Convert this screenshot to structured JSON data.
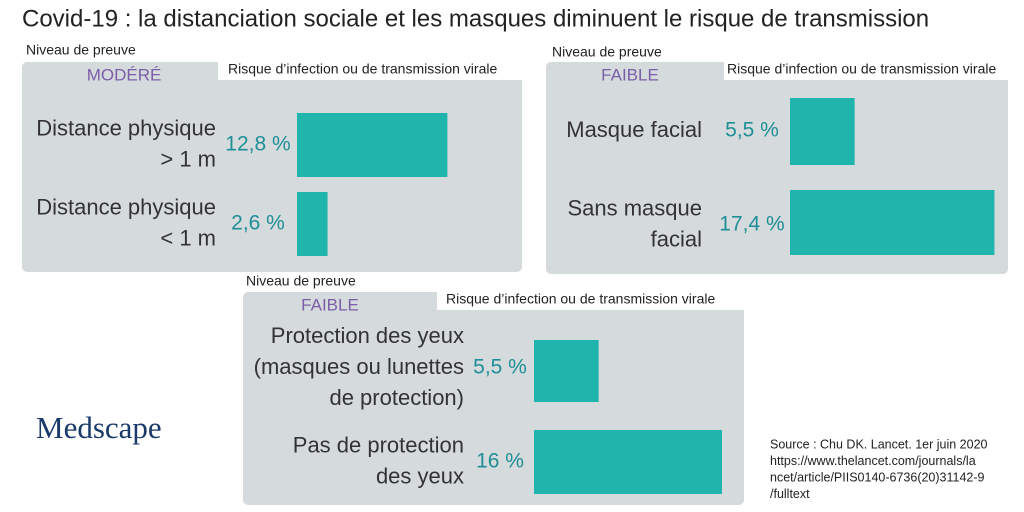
{
  "title": "Covid-19 : la distanciation sociale et les masques diminuent le risque de transmission",
  "panels": [
    {
      "evidence_label": "Niveau de preuve",
      "level": "MODÉRÉ",
      "header": "Risque d’infection ou de transmission virale",
      "rows": [
        {
          "label_lines": [
            "Distance physique",
            "> 1 m"
          ],
          "value": 12.8,
          "value_label": "12,8 %"
        },
        {
          "label_lines": [
            "Distance physique",
            "< 1 m"
          ],
          "value": 2.6,
          "value_label": "2,6 %"
        }
      ]
    },
    {
      "evidence_label": "Niveau de preuve",
      "level": "FAIBLE",
      "header": "Risque d’infection ou de transmission virale",
      "rows": [
        {
          "label_lines": [
            "Masque facial"
          ],
          "value": 5.5,
          "value_label": "5,5 %"
        },
        {
          "label_lines": [
            "Sans masque",
            "facial"
          ],
          "value": 17.4,
          "value_label": "17,4 %"
        }
      ]
    },
    {
      "evidence_label": "Niveau de preuve",
      "level": "FAIBLE",
      "header": "Risque d’infection ou de transmission virale",
      "rows": [
        {
          "label_lines": [
            "Protection des yeux",
            "(masques ou lunettes",
            "de protection)"
          ],
          "value": 5.5,
          "value_label": "5,5 %"
        },
        {
          "label_lines": [
            "Pas de protection",
            "des yeux"
          ],
          "value": 16,
          "value_label": "16 %"
        }
      ]
    }
  ],
  "logo": "Medscape",
  "source_lines": [
    "Source : Chu DK. Lancet. 1er juin 2020",
    "https://www.thelancet.com/journals/la",
    "ncet/article/PIIS0140-6736(20)31142-9",
    "/fulltext"
  ]
}
